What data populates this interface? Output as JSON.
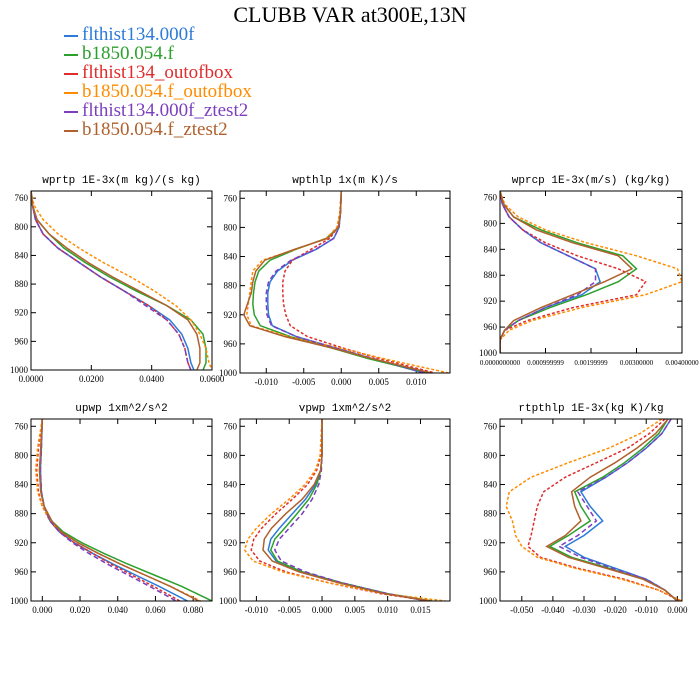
{
  "figure_title": "CLUBB VAR at300E,13N",
  "colors": {
    "flthist134.000f": "#2c7bd8",
    "b1850.054.f": "#2ca02c",
    "flthist134_outofbox": "#e02c2c",
    "b1850.054.f_outofbox": "#ff8c00",
    "flthist134.000f_ztest2": "#7b3fbf",
    "b1850.054.f_ztest2": "#b0602c"
  },
  "legend": [
    {
      "name": "flthist134.000f",
      "color": "#2c7bd8"
    },
    {
      "name": "b1850.054.f",
      "color": "#2ca02c"
    },
    {
      "name": "flthist134_outofbox",
      "color": "#e02c2c"
    },
    {
      "name": "b1850.054.f_outofbox",
      "color": "#ff8c00"
    },
    {
      "name": "flthist134.000f_ztest2",
      "color": "#7b3fbf"
    },
    {
      "name": "b1850.054.f_ztest2",
      "color": "#b0602c"
    }
  ],
  "chart_data": [
    {
      "type": "line",
      "title": "wprtp   1E-3x(m kg)/(s kg)",
      "xlim": [
        0,
        0.06
      ],
      "ylim": [
        1000,
        750
      ],
      "y_reversed": true,
      "xticks": [
        0,
        0.02,
        0.04,
        0.06
      ],
      "xtick_labels": [
        "0.0000",
        "0.0200",
        "0.0400",
        "0.0600"
      ],
      "yticks": [
        760,
        800,
        840,
        880,
        920,
        960,
        1000
      ],
      "ytick_labels": [
        "760",
        "800",
        "840",
        "880",
        "920",
        "960",
        "1000"
      ],
      "y": [
        750,
        770,
        790,
        810,
        830,
        850,
        870,
        890,
        910,
        930,
        950,
        970,
        990,
        1000
      ],
      "series": [
        {
          "name": "flthist134.000f",
          "x": [
            0,
            0.0005,
            0.0015,
            0.004,
            0.009,
            0.016,
            0.023,
            0.031,
            0.039,
            0.046,
            0.05,
            0.052,
            0.053,
            0.054
          ]
        },
        {
          "name": "b1850.054.f",
          "x": [
            0,
            0.0005,
            0.002,
            0.006,
            0.011,
            0.018,
            0.026,
            0.035,
            0.045,
            0.053,
            0.057,
            0.058,
            0.058,
            0.057
          ]
        },
        {
          "name": "flthist134_outofbox",
          "x": [
            0,
            0.0005,
            0.0015,
            0.004,
            0.009,
            0.016,
            0.023,
            0.031,
            0.039,
            0.045,
            0.049,
            0.051,
            0.052,
            0.053
          ]
        },
        {
          "name": "b1850.054.f_outofbox",
          "x": [
            0,
            0.001,
            0.004,
            0.009,
            0.016,
            0.024,
            0.033,
            0.041,
            0.048,
            0.053,
            0.056,
            0.058,
            0.059,
            0.06
          ]
        },
        {
          "name": "flthist134.000f_ztest2",
          "x": [
            0,
            0.0005,
            0.0015,
            0.004,
            0.009,
            0.016,
            0.023,
            0.031,
            0.038,
            0.045,
            0.049,
            0.051,
            0.052,
            0.053
          ]
        },
        {
          "name": "b1850.054.f_ztest2",
          "x": [
            0,
            0.0005,
            0.002,
            0.006,
            0.012,
            0.019,
            0.027,
            0.036,
            0.045,
            0.052,
            0.055,
            0.056,
            0.056,
            0.055
          ]
        }
      ]
    },
    {
      "type": "line",
      "title": "wpthlp   1x(m K)/s",
      "xlim": [
        -0.0135,
        0.0145
      ],
      "ylim": [
        1000,
        750
      ],
      "y_reversed": true,
      "xticks": [
        -0.01,
        -0.005,
        0,
        0.005,
        0.01
      ],
      "xtick_labels": [
        "-0.010",
        "-0.005",
        "0.000",
        "0.005",
        "0.010"
      ],
      "yticks": [
        760,
        800,
        840,
        880,
        920,
        960,
        1000
      ],
      "ytick_labels": [
        "760",
        "800",
        "840",
        "880",
        "920",
        "960",
        "1000"
      ],
      "y": [
        750,
        780,
        800,
        815,
        830,
        845,
        860,
        875,
        890,
        905,
        920,
        935,
        950,
        965,
        980,
        1000
      ],
      "series": [
        {
          "name": "flthist134.000f",
          "x": [
            0,
            -0.0001,
            -0.0003,
            -0.001,
            -0.0033,
            -0.0065,
            -0.0085,
            -0.0095,
            -0.0098,
            -0.0098,
            -0.0097,
            -0.0092,
            -0.006,
            -0.001,
            0.004,
            0.011
          ]
        },
        {
          "name": "b1850.054.f",
          "x": [
            0,
            -0.0001,
            -0.0004,
            -0.002,
            -0.006,
            -0.0095,
            -0.011,
            -0.0115,
            -0.0117,
            -0.0118,
            -0.0116,
            -0.0108,
            -0.0068,
            -0.0015,
            0.0035,
            0.0115
          ]
        },
        {
          "name": "flthist134_outofbox",
          "x": [
            0,
            -0.0002,
            -0.0005,
            -0.0015,
            -0.004,
            -0.0065,
            -0.0075,
            -0.0078,
            -0.0078,
            -0.0077,
            -0.0074,
            -0.0068,
            -0.0045,
            0.0,
            0.005,
            0.0125
          ]
        },
        {
          "name": "b1850.054.f_outofbox",
          "x": [
            0,
            -0.0002,
            -0.0006,
            -0.002,
            -0.006,
            -0.0105,
            -0.0118,
            -0.012,
            -0.0122,
            -0.0124,
            -0.0126,
            -0.012,
            -0.007,
            -0.0005,
            0.0055,
            0.0143
          ]
        },
        {
          "name": "flthist134.000f_ztest2",
          "x": [
            0,
            -0.0001,
            -0.0003,
            -0.001,
            -0.0034,
            -0.0067,
            -0.0087,
            -0.0097,
            -0.01,
            -0.01,
            -0.0099,
            -0.0093,
            -0.006,
            -0.001,
            0.0042,
            0.0112
          ]
        },
        {
          "name": "b1850.054.f_ztest2",
          "x": [
            0,
            -0.0001,
            -0.0004,
            -0.0018,
            -0.0062,
            -0.0102,
            -0.0114,
            -0.0118,
            -0.012,
            -0.0125,
            -0.013,
            -0.0122,
            -0.0075,
            -0.0015,
            0.004,
            0.012
          ]
        }
      ]
    },
    {
      "type": "line",
      "title": "wprcp   1E-3x(m/s) (kg/kg)",
      "xlim": [
        0,
        0.004
      ],
      "ylim": [
        1000,
        750
      ],
      "y_reversed": true,
      "xticks": [
        0,
        0.001,
        0.002,
        0.003,
        0.004
      ],
      "xtick_labels": [
        "0.0000000000",
        "0.000999999",
        "0.00199999",
        "0.00300000",
        "0.00400000"
      ],
      "yticks": [
        760,
        800,
        840,
        880,
        920,
        960,
        1000
      ],
      "ytick_labels": [
        "760",
        "800",
        "840",
        "880",
        "920",
        "960",
        "1000"
      ],
      "y": [
        750,
        770,
        790,
        810,
        830,
        850,
        870,
        890,
        910,
        930,
        950,
        965,
        980,
        1000
      ],
      "series": [
        {
          "name": "flthist134.000f",
          "x": [
            0,
            5e-05,
            0.0002,
            0.0005,
            0.0009,
            0.0015,
            0.0021,
            0.0022,
            0.0018,
            0.001,
            0.0004,
            0.0001,
            0,
            0
          ]
        },
        {
          "name": "b1850.054.f",
          "x": [
            0,
            8e-05,
            0.0003,
            0.0009,
            0.0017,
            0.0027,
            0.003,
            0.0026,
            0.0019,
            0.0011,
            0.0004,
            0.0001,
            0,
            0
          ]
        },
        {
          "name": "flthist134_outofbox",
          "x": [
            0,
            5e-05,
            0.0002,
            0.0005,
            0.001,
            0.0017,
            0.0026,
            0.0032,
            0.003,
            0.0016,
            0.0006,
            0.0001,
            0,
            0
          ]
        },
        {
          "name": "b1850.054.f_outofbox",
          "x": [
            0,
            0.0001,
            0.0004,
            0.001,
            0.0019,
            0.003,
            0.0039,
            0.004,
            0.0032,
            0.0018,
            0.0007,
            0.0002,
            0,
            0
          ]
        },
        {
          "name": "flthist134.000f_ztest2",
          "x": [
            0,
            5e-05,
            0.0002,
            0.0005,
            0.0009,
            0.0015,
            0.0021,
            0.0021,
            0.0017,
            0.001,
            0.0004,
            0.0001,
            0,
            0
          ]
        },
        {
          "name": "b1850.054.f_ztest2",
          "x": [
            0,
            8e-05,
            0.0003,
            0.0008,
            0.0016,
            0.0026,
            0.0029,
            0.0023,
            0.0016,
            0.0009,
            0.0003,
            0.0001,
            0,
            0
          ]
        }
      ]
    },
    {
      "type": "line",
      "title": "upwp   1xm^2/s^2",
      "xlim": [
        -0.006,
        0.09
      ],
      "ylim": [
        1000,
        750
      ],
      "y_reversed": true,
      "xticks": [
        0,
        0.02,
        0.04,
        0.06,
        0.08
      ],
      "xtick_labels": [
        "0.000",
        "0.020",
        "0.040",
        "0.060",
        "0.080"
      ],
      "yticks": [
        760,
        800,
        840,
        880,
        920,
        960,
        1000
      ],
      "ytick_labels": [
        "760",
        "800",
        "840",
        "880",
        "920",
        "960",
        "1000"
      ],
      "y": [
        750,
        790,
        820,
        850,
        870,
        890,
        905,
        920,
        935,
        950,
        965,
        980,
        1000
      ],
      "series": [
        {
          "name": "flthist134.000f",
          "x": [
            0,
            -0.0005,
            -0.001,
            -0.0005,
            0.001,
            0.004,
            0.009,
            0.017,
            0.027,
            0.038,
            0.05,
            0.062,
            0.077
          ]
        },
        {
          "name": "b1850.054.f",
          "x": [
            0,
            -0.0008,
            -0.0015,
            -0.0008,
            0.001,
            0.005,
            0.011,
            0.021,
            0.033,
            0.046,
            0.06,
            0.074,
            0.09
          ]
        },
        {
          "name": "flthist134_outofbox",
          "x": [
            0,
            -0.002,
            -0.003,
            -0.002,
            0.0,
            0.004,
            0.009,
            0.017,
            0.027,
            0.037,
            0.048,
            0.059,
            0.073
          ]
        },
        {
          "name": "b1850.054.f_outofbox",
          "x": [
            0,
            -0.0025,
            -0.0035,
            -0.0025,
            0.0,
            0.004,
            0.01,
            0.019,
            0.03,
            0.042,
            0.055,
            0.068,
            0.084
          ]
        },
        {
          "name": "flthist134.000f_ztest2",
          "x": [
            0,
            -0.0005,
            -0.001,
            -0.0005,
            0.001,
            0.004,
            0.009,
            0.016,
            0.025,
            0.035,
            0.046,
            0.057,
            0.071
          ]
        },
        {
          "name": "b1850.054.f_ztest2",
          "x": [
            0,
            -0.0008,
            -0.0015,
            -0.0008,
            0.001,
            0.005,
            0.01,
            0.019,
            0.03,
            0.042,
            0.055,
            0.068,
            0.083
          ]
        }
      ]
    },
    {
      "type": "line",
      "title": "vpwp   1xm^2/s^2",
      "xlim": [
        -0.0125,
        0.0195
      ],
      "ylim": [
        1000,
        750
      ],
      "y_reversed": true,
      "xticks": [
        -0.01,
        -0.005,
        0,
        0.005,
        0.01,
        0.015
      ],
      "xtick_labels": [
        "-0.010",
        "-0.005",
        "0.000",
        "0.005",
        "0.010",
        "0.015"
      ],
      "yticks": [
        760,
        800,
        840,
        880,
        920,
        960,
        1000
      ],
      "ytick_labels": [
        "760",
        "800",
        "840",
        "880",
        "920",
        "960",
        "1000"
      ],
      "y": [
        750,
        800,
        820,
        840,
        860,
        880,
        900,
        915,
        930,
        945,
        960,
        975,
        990,
        1000
      ],
      "series": [
        {
          "name": "flthist134.000f",
          "x": [
            0,
            0,
            -0.0002,
            -0.001,
            -0.0025,
            -0.0045,
            -0.0065,
            -0.0078,
            -0.0082,
            -0.007,
            -0.003,
            0.003,
            0.01,
            0.016
          ]
        },
        {
          "name": "b1850.054.f",
          "x": [
            0,
            0,
            -0.0002,
            -0.0008,
            -0.002,
            -0.0038,
            -0.0057,
            -0.0072,
            -0.0078,
            -0.0068,
            -0.003,
            0.003,
            0.01,
            0.0168
          ]
        },
        {
          "name": "flthist134_outofbox",
          "x": [
            0,
            -0.0002,
            -0.0008,
            -0.0022,
            -0.0045,
            -0.007,
            -0.0092,
            -0.0104,
            -0.0108,
            -0.0095,
            -0.0055,
            0.001,
            0.009,
            0.0165
          ]
        },
        {
          "name": "b1850.054.f_outofbox",
          "x": [
            0,
            -0.0003,
            -0.001,
            -0.0026,
            -0.005,
            -0.0077,
            -0.01,
            -0.0113,
            -0.0118,
            -0.0105,
            -0.006,
            0.001,
            0.0095,
            0.0188
          ]
        },
        {
          "name": "flthist134.000f_ztest2",
          "x": [
            0,
            0,
            -0.0001,
            -0.0005,
            -0.0015,
            -0.003,
            -0.005,
            -0.0065,
            -0.0072,
            -0.0062,
            -0.0025,
            0.003,
            0.01,
            0.0162
          ]
        },
        {
          "name": "b1850.054.f_ztest2",
          "x": [
            0,
            0,
            -0.0002,
            -0.0012,
            -0.003,
            -0.0055,
            -0.0077,
            -0.0088,
            -0.009,
            -0.0076,
            -0.0035,
            0.0025,
            0.0095,
            0.0165
          ]
        }
      ]
    },
    {
      "type": "line",
      "title": "rtpthlp   1E-3x(kg K)/kg",
      "xlim": [
        -0.057,
        0.0015
      ],
      "ylim": [
        1000,
        750
      ],
      "y_reversed": true,
      "xticks": [
        -0.05,
        -0.04,
        -0.03,
        -0.02,
        -0.01,
        0
      ],
      "xtick_labels": [
        "-0.050",
        "-0.040",
        "-0.030",
        "-0.020",
        "-0.010",
        "0.000"
      ],
      "yticks": [
        760,
        800,
        840,
        880,
        920,
        960,
        1000
      ],
      "ytick_labels": [
        "760",
        "800",
        "840",
        "880",
        "920",
        "960",
        "1000"
      ],
      "y": [
        750,
        770,
        790,
        810,
        830,
        850,
        870,
        890,
        910,
        925,
        940,
        955,
        970,
        985,
        1000
      ],
      "series": [
        {
          "name": "flthist134.000f",
          "x": [
            -0.002,
            -0.005,
            -0.01,
            -0.016,
            -0.023,
            -0.031,
            -0.028,
            -0.024,
            -0.03,
            -0.036,
            -0.03,
            -0.02,
            -0.01,
            -0.004,
            0.0
          ]
        },
        {
          "name": "b1850.054.f",
          "x": [
            -0.003,
            -0.006,
            -0.011,
            -0.017,
            -0.024,
            -0.033,
            -0.031,
            -0.028,
            -0.035,
            -0.041,
            -0.034,
            -0.022,
            -0.011,
            -0.004,
            0.0
          ]
        },
        {
          "name": "flthist134_outofbox",
          "x": [
            -0.004,
            -0.009,
            -0.016,
            -0.026,
            -0.036,
            -0.043,
            -0.045,
            -0.046,
            -0.047,
            -0.048,
            -0.044,
            -0.032,
            -0.017,
            -0.006,
            0.001
          ]
        },
        {
          "name": "b1850.054.f_outofbox",
          "x": [
            -0.005,
            -0.012,
            -0.022,
            -0.035,
            -0.047,
            -0.054,
            -0.055,
            -0.053,
            -0.052,
            -0.05,
            -0.045,
            -0.033,
            -0.018,
            -0.006,
            0.0015
          ]
        },
        {
          "name": "flthist134.000f_ztest2",
          "x": [
            -0.002,
            -0.005,
            -0.01,
            -0.016,
            -0.023,
            -0.032,
            -0.029,
            -0.026,
            -0.032,
            -0.038,
            -0.031,
            -0.021,
            -0.01,
            -0.004,
            0.0
          ]
        },
        {
          "name": "b1850.054.f_ztest2",
          "x": [
            -0.003,
            -0.007,
            -0.013,
            -0.02,
            -0.028,
            -0.034,
            -0.033,
            -0.031,
            -0.036,
            -0.042,
            -0.035,
            -0.023,
            -0.011,
            -0.004,
            0.0
          ]
        }
      ]
    }
  ]
}
